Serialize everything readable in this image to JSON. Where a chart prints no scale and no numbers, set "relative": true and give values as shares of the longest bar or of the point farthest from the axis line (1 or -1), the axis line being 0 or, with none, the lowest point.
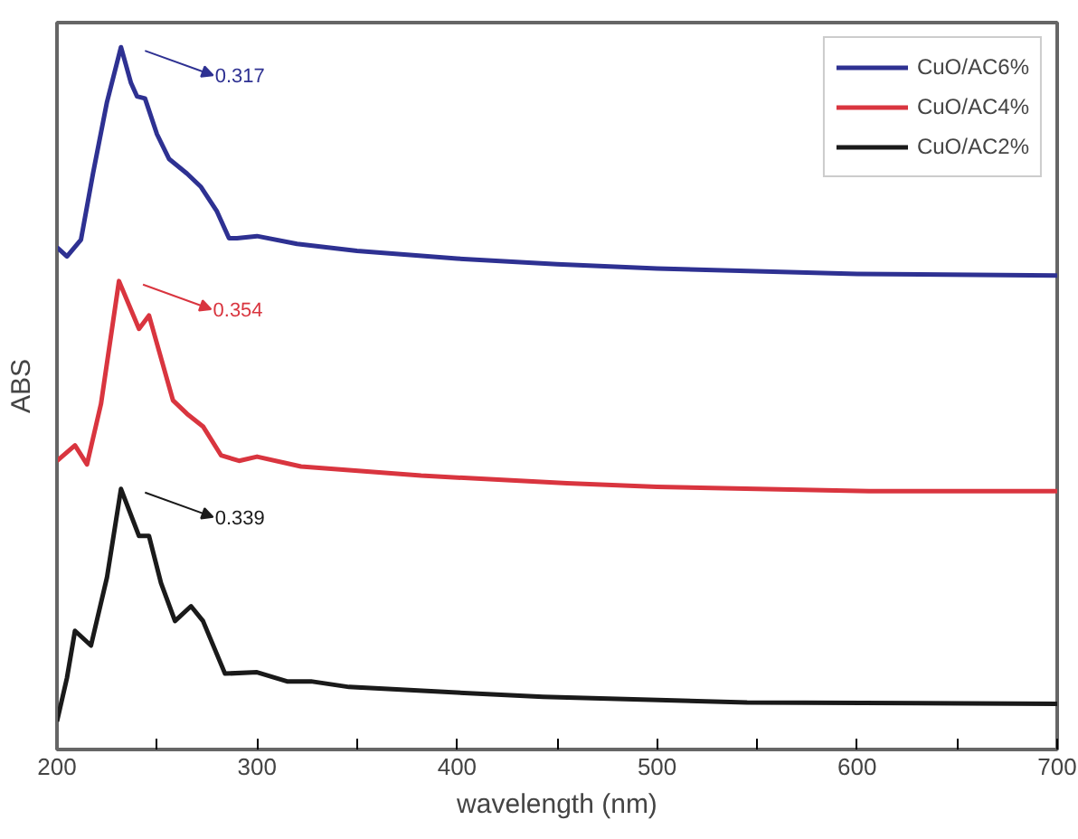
{
  "chart_data": {
    "type": "line",
    "relative": true,
    "xlabel": "wavelength (nm)",
    "ylabel": "ABS",
    "xlim": [
      200,
      700
    ],
    "xticks": [
      200,
      {
        "value": 250,
        "label": null
      },
      300,
      {
        "value": 350,
        "label": null
      },
      400,
      {
        "value": 450,
        "label": null
      },
      500,
      {
        "value": 550,
        "label": null
      },
      600,
      {
        "value": 650,
        "label": null
      },
      700
    ],
    "legend": "top right",
    "grid": false,
    "marker": "none",
    "line_style": "solid",
    "series": [
      {
        "name": "CuO/AC6%",
        "color": "#2e3192",
        "x": [
          200,
          205,
          212,
          218,
          225,
          232,
          237,
          240,
          244,
          250,
          256,
          265,
          272,
          280,
          286,
          290,
          300,
          320,
          350,
          400,
          450,
          500,
          600,
          700
        ],
        "values": [
          0.715,
          0.702,
          0.726,
          0.82,
          0.922,
          1.0,
          0.949,
          0.93,
          0.927,
          0.876,
          0.841,
          0.82,
          0.801,
          0.766,
          0.728,
          0.728,
          0.731,
          0.72,
          0.71,
          0.699,
          0.691,
          0.685,
          0.677,
          0.675
        ]
      },
      {
        "name": "CuO/AC4%",
        "color": "#d9353f",
        "x": [
          200,
          209,
          215,
          222,
          231,
          241,
          246,
          258,
          265,
          273,
          282,
          291,
          300,
          322,
          382,
          455,
          500,
          606,
          700
        ],
        "values": [
          0.411,
          0.433,
          0.406,
          0.492,
          0.667,
          0.599,
          0.618,
          0.497,
          0.478,
          0.46,
          0.419,
          0.411,
          0.417,
          0.403,
          0.39,
          0.379,
          0.374,
          0.368,
          0.368
        ]
      },
      {
        "name": "CuO/AC2%",
        "color": "#1a1a1a",
        "x": [
          200,
          205,
          209,
          217,
          225,
          232,
          241,
          246,
          252,
          259,
          267,
          273,
          284,
          300,
          315,
          327,
          346,
          400,
          443,
          545,
          700
        ],
        "values": [
          0.04,
          0.102,
          0.169,
          0.148,
          0.245,
          0.371,
          0.304,
          0.304,
          0.237,
          0.183,
          0.204,
          0.183,
          0.108,
          0.11,
          0.097,
          0.097,
          0.089,
          0.081,
          0.075,
          0.067,
          0.065
        ]
      }
    ],
    "annotations": [
      "0.317",
      "0.354",
      "0.339"
    ]
  }
}
